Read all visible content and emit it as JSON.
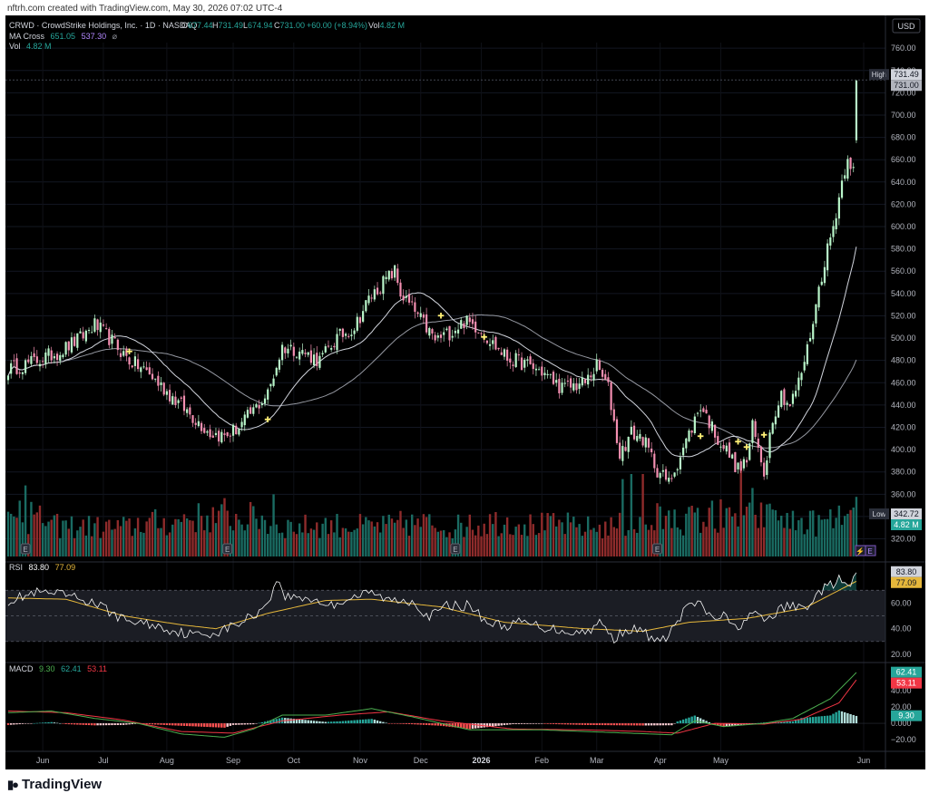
{
  "header": {
    "credit": "nftrh.com created with TradingView.com, May 30, 2026 07:02 UTC-4",
    "title": "CRWD · CrowdStrike Holdings, Inc. · 1D · NASDAQ",
    "ohlc": [
      {
        "k": "O",
        "v": "677.44"
      },
      {
        "k": "H",
        "v": "731.49"
      },
      {
        "k": "L",
        "v": "674.94"
      },
      {
        "k": "C",
        "v": "731.00"
      }
    ],
    "change": "+60.00 (+8.94%)",
    "vol_key": "Vol",
    "vol_value": "4.82 M",
    "ma_label": "MA Cross",
    "ma_fast": "651.05",
    "ma_slow": "537.30",
    "vol_row_label": "Vol",
    "vol_row_value": "4.82 M",
    "currency": "USD"
  },
  "brand": {
    "name": "TradingView",
    "logo_icon": "tradingview-logo-icon"
  },
  "colors": {
    "up": "#26a69a",
    "down": "#ef5350",
    "candle_up": "#b9f6ca",
    "candle_down": "#f48fb1",
    "ma_fast": "#d1d4dc",
    "ma_slow": "#9598a1",
    "rsi": "#f5f5f5",
    "rsi_ma": "#e5b73b",
    "macd": "#4caf50",
    "signal": "#f23645",
    "cross": "#fff176"
  },
  "chart_data": [
    {
      "type": "candlestick",
      "name": "CRWD",
      "x_labels": [
        "Jun",
        "Jul",
        "Aug",
        "Sep",
        "Oct",
        "Nov",
        "Dec",
        "2026",
        "Feb",
        "Mar",
        "Apr",
        "May",
        "Jun"
      ],
      "y_ticks": [
        320,
        340,
        360,
        380,
        400,
        420,
        440,
        460,
        480,
        500,
        520,
        540,
        560,
        580,
        600,
        620,
        640,
        660,
        680,
        700,
        720,
        740,
        760
      ],
      "ylim": [
        305,
        765
      ],
      "high_marker": {
        "label": "High",
        "value": "731.49"
      },
      "last_price": {
        "value": "731.00"
      },
      "low_marker": {
        "label": "Low",
        "value": "342.72"
      },
      "volume_label": {
        "value": "4.82 M"
      },
      "earnings_markers": [
        "E",
        "E",
        "E",
        "E",
        "E"
      ],
      "anchors": [
        [
          0,
          472
        ],
        [
          8,
          478
        ],
        [
          18,
          488
        ],
        [
          25,
          500
        ],
        [
          30,
          512
        ],
        [
          35,
          500
        ],
        [
          42,
          480
        ],
        [
          48,
          470
        ],
        [
          55,
          452
        ],
        [
          63,
          432
        ],
        [
          70,
          415
        ],
        [
          75,
          412
        ],
        [
          80,
          420
        ],
        [
          85,
          435
        ],
        [
          90,
          450
        ],
        [
          95,
          492
        ],
        [
          100,
          490
        ],
        [
          108,
          480
        ],
        [
          114,
          500
        ],
        [
          120,
          510
        ],
        [
          125,
          535
        ],
        [
          130,
          550
        ],
        [
          134,
          560
        ],
        [
          136,
          540
        ],
        [
          142,
          520
        ],
        [
          148,
          498
        ],
        [
          153,
          505
        ],
        [
          158,
          515
        ],
        [
          163,
          510
        ],
        [
          168,
          495
        ],
        [
          173,
          482
        ],
        [
          178,
          478
        ],
        [
          185,
          470
        ],
        [
          192,
          455
        ],
        [
          200,
          460
        ],
        [
          204,
          475
        ],
        [
          208,
          455
        ],
        [
          212,
          395
        ],
        [
          216,
          415
        ],
        [
          220,
          410
        ],
        [
          225,
          382
        ],
        [
          229,
          370
        ],
        [
          233,
          395
        ],
        [
          237,
          420
        ],
        [
          240,
          440
        ],
        [
          243,
          425
        ],
        [
          246,
          410
        ],
        [
          250,
          395
        ],
        [
          253,
          382
        ],
        [
          256,
          390
        ],
        [
          258,
          420
        ],
        [
          260,
          400
        ],
        [
          262,
          380
        ],
        [
          265,
          430
        ],
        [
          268,
          450
        ],
        [
          271,
          440
        ],
        [
          274,
          460
        ],
        [
          277,
          490
        ],
        [
          280,
          530
        ],
        [
          283,
          570
        ],
        [
          286,
          600
        ],
        [
          289,
          640
        ],
        [
          291,
          665
        ],
        [
          293,
          650
        ],
        [
          294,
          731
        ]
      ],
      "volume": {
        "base": [
          300,
          250,
          240,
          280,
          320,
          320,
          250,
          260,
          250,
          270,
          250,
          290,
          260,
          240,
          260,
          300,
          300,
          330,
          280,
          300
        ],
        "spikes": [
          [
            4,
            440
          ],
          [
            6,
            560
          ],
          [
            8,
            430
          ],
          [
            62,
            300
          ],
          [
            75,
            460
          ],
          [
            92,
            490
          ],
          [
            138,
            290
          ],
          [
            160,
            330
          ],
          [
            213,
            610
          ],
          [
            216,
            650
          ],
          [
            220,
            650
          ],
          [
            225,
            420
          ],
          [
            231,
            370
          ],
          [
            237,
            400
          ],
          [
            244,
            440
          ],
          [
            247,
            450
          ],
          [
            254,
            700
          ],
          [
            258,
            540
          ],
          [
            265,
            370
          ],
          [
            282,
            290
          ],
          [
            290,
            320
          ],
          [
            294,
            470
          ]
        ]
      },
      "ma_crosses": [
        [
          42,
          488
        ],
        [
          90,
          427
        ],
        [
          150,
          520
        ],
        [
          165,
          501
        ],
        [
          240,
          412
        ],
        [
          253,
          407
        ],
        [
          256,
          402
        ],
        [
          262,
          413
        ]
      ]
    },
    {
      "type": "line",
      "name": "RSI",
      "title": "RSI",
      "values_printed": {
        "rsi": "83.80",
        "ma": "77.09"
      },
      "y_ticks": [
        20,
        40,
        60
      ],
      "ylim": [
        15,
        90
      ],
      "bands": {
        "upper": 70,
        "middle": 50,
        "lower": 30
      },
      "anchors": [
        [
          0,
          62
        ],
        [
          10,
          68
        ],
        [
          20,
          66
        ],
        [
          30,
          60
        ],
        [
          40,
          47
        ],
        [
          50,
          43
        ],
        [
          58,
          38
        ],
        [
          65,
          35
        ],
        [
          72,
          37
        ],
        [
          80,
          44
        ],
        [
          88,
          55
        ],
        [
          94,
          78
        ],
        [
          96,
          65
        ],
        [
          104,
          64
        ],
        [
          112,
          58
        ],
        [
          118,
          64
        ],
        [
          126,
          68
        ],
        [
          132,
          62
        ],
        [
          140,
          62
        ],
        [
          146,
          49
        ],
        [
          152,
          58
        ],
        [
          160,
          58
        ],
        [
          166,
          45
        ],
        [
          172,
          42
        ],
        [
          178,
          45
        ],
        [
          186,
          41
        ],
        [
          194,
          38
        ],
        [
          200,
          37
        ],
        [
          205,
          45
        ],
        [
          210,
          32
        ],
        [
          214,
          40
        ],
        [
          220,
          38
        ],
        [
          226,
          28
        ],
        [
          232,
          45
        ],
        [
          236,
          60
        ],
        [
          240,
          58
        ],
        [
          244,
          48
        ],
        [
          248,
          50
        ],
        [
          252,
          40
        ],
        [
          258,
          52
        ],
        [
          262,
          46
        ],
        [
          270,
          58
        ],
        [
          276,
          56
        ],
        [
          282,
          70
        ],
        [
          288,
          78
        ],
        [
          292,
          72
        ],
        [
          294,
          84
        ]
      ],
      "ma_anchors": [
        [
          0,
          64
        ],
        [
          20,
          63
        ],
        [
          40,
          50
        ],
        [
          60,
          43
        ],
        [
          72,
          40
        ],
        [
          90,
          52
        ],
        [
          110,
          62
        ],
        [
          126,
          63
        ],
        [
          150,
          57
        ],
        [
          172,
          45
        ],
        [
          200,
          40
        ],
        [
          220,
          38
        ],
        [
          236,
          45
        ],
        [
          256,
          48
        ],
        [
          276,
          56
        ],
        [
          288,
          70
        ],
        [
          294,
          77
        ]
      ]
    },
    {
      "type": "bar+line",
      "name": "MACD",
      "title": "MACD",
      "values_printed": {
        "hist": "9.30",
        "macd": "62.41",
        "signal": "53.11"
      },
      "y_ticks": [
        -20,
        0,
        20,
        40,
        60
      ],
      "tick_labels": [
        "−20.00",
        "0.000",
        "20.00",
        "40.00",
        "60.00"
      ],
      "ylim": [
        -32,
        72
      ],
      "macd_anchors": [
        [
          0,
          13
        ],
        [
          15,
          15
        ],
        [
          30,
          6
        ],
        [
          45,
          0
        ],
        [
          60,
          -13
        ],
        [
          75,
          -17
        ],
        [
          85,
          -7
        ],
        [
          95,
          10
        ],
        [
          110,
          10
        ],
        [
          126,
          18
        ],
        [
          140,
          8
        ],
        [
          160,
          -8
        ],
        [
          185,
          -8
        ],
        [
          200,
          -10
        ],
        [
          215,
          -12
        ],
        [
          230,
          -14
        ],
        [
          238,
          3
        ],
        [
          248,
          -4
        ],
        [
          262,
          0
        ],
        [
          272,
          6
        ],
        [
          285,
          30
        ],
        [
          294,
          62
        ]
      ],
      "signal_anchors": [
        [
          0,
          15
        ],
        [
          20,
          13
        ],
        [
          40,
          4
        ],
        [
          60,
          -10
        ],
        [
          78,
          -12
        ],
        [
          95,
          3
        ],
        [
          115,
          10
        ],
        [
          132,
          14
        ],
        [
          150,
          3
        ],
        [
          175,
          -7
        ],
        [
          200,
          -8
        ],
        [
          220,
          -10
        ],
        [
          232,
          -12
        ],
        [
          245,
          0
        ],
        [
          262,
          -1
        ],
        [
          275,
          5
        ],
        [
          288,
          25
        ],
        [
          294,
          53
        ]
      ]
    }
  ]
}
